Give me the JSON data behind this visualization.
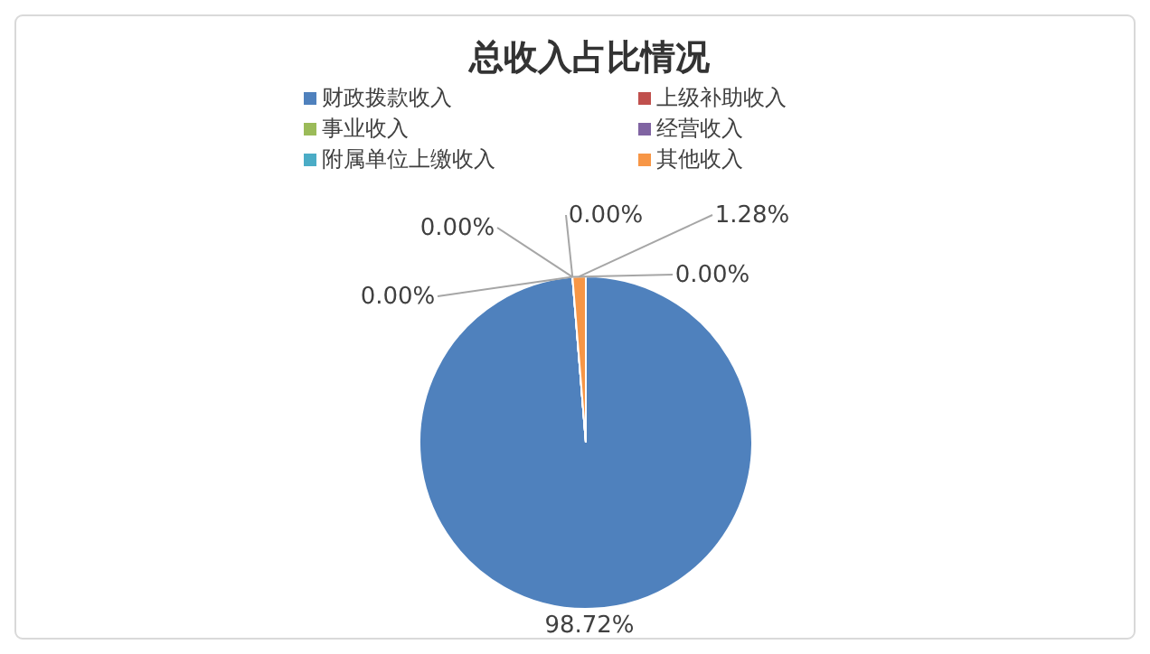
{
  "chart_data": {
    "type": "pie",
    "title": "总收入占比情况",
    "categories": [
      "财政拨款收入",
      "上级补助收入",
      "事业收入",
      "经营收入",
      "附属单位上缴收入",
      "其他收入"
    ],
    "values": [
      98.72,
      0,
      0,
      0,
      0,
      1.28
    ],
    "colors": [
      "#4f81bd",
      "#c0504d",
      "#9bbb59",
      "#8064a2",
      "#4bacc6",
      "#f79646"
    ],
    "value_labels": [
      "98.72%",
      "0.00%",
      "0.00%",
      "0.00%",
      "0.00%",
      "1.28%"
    ],
    "legend": "top"
  }
}
